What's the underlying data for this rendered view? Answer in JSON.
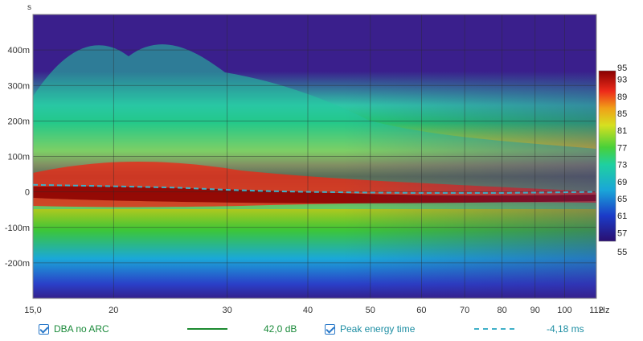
{
  "chart_data": {
    "type": "heatmap",
    "title": "",
    "x_unit": "Hz",
    "y_unit": "s",
    "x_range": [
      15,
      112
    ],
    "x_scale": "log",
    "y_range": [
      -300,
      500
    ],
    "y_tick_unit": "ms",
    "x_ticks": [
      "15,0",
      "20",
      "30",
      "40",
      "50",
      "60",
      "70",
      "80",
      "90",
      "100",
      "112"
    ],
    "x_tick_values": [
      15,
      20,
      30,
      40,
      50,
      60,
      70,
      80,
      90,
      100,
      112
    ],
    "y_ticks": [
      "400m",
      "300m",
      "200m",
      "100m",
      "0",
      "-100m",
      "-200m"
    ],
    "y_tick_values": [
      400,
      300,
      200,
      100,
      0,
      -100,
      -200
    ],
    "colorbar": {
      "range": [
        55,
        95
      ],
      "ticks": [
        "95",
        "93",
        "89",
        "85",
        "81",
        "77",
        "73",
        "69",
        "65",
        "61",
        "57",
        "55"
      ],
      "tick_values": [
        95,
        93,
        89,
        85,
        81,
        77,
        73,
        69,
        65,
        61,
        57,
        55
      ]
    },
    "grid": true,
    "series": [
      {
        "name": "Peak energy time",
        "style": "dashed",
        "color": "#3fb0c8",
        "x": [
          15,
          20,
          25,
          30,
          35,
          40,
          50,
          60,
          70,
          80,
          90,
          100,
          112
        ],
        "y": [
          20,
          16,
          12,
          6,
          2,
          0,
          -2,
          -3,
          -3,
          -3,
          -2,
          -1,
          0
        ]
      }
    ]
  },
  "legend": {
    "entries": [
      {
        "label": "DBA no ARC",
        "value": "42,0 dB",
        "checked": true,
        "color": "#1c8a30"
      },
      {
        "label": "Peak energy time",
        "value": "-4,18 ms",
        "checked": true,
        "color": "#3fb0c8"
      }
    ]
  }
}
